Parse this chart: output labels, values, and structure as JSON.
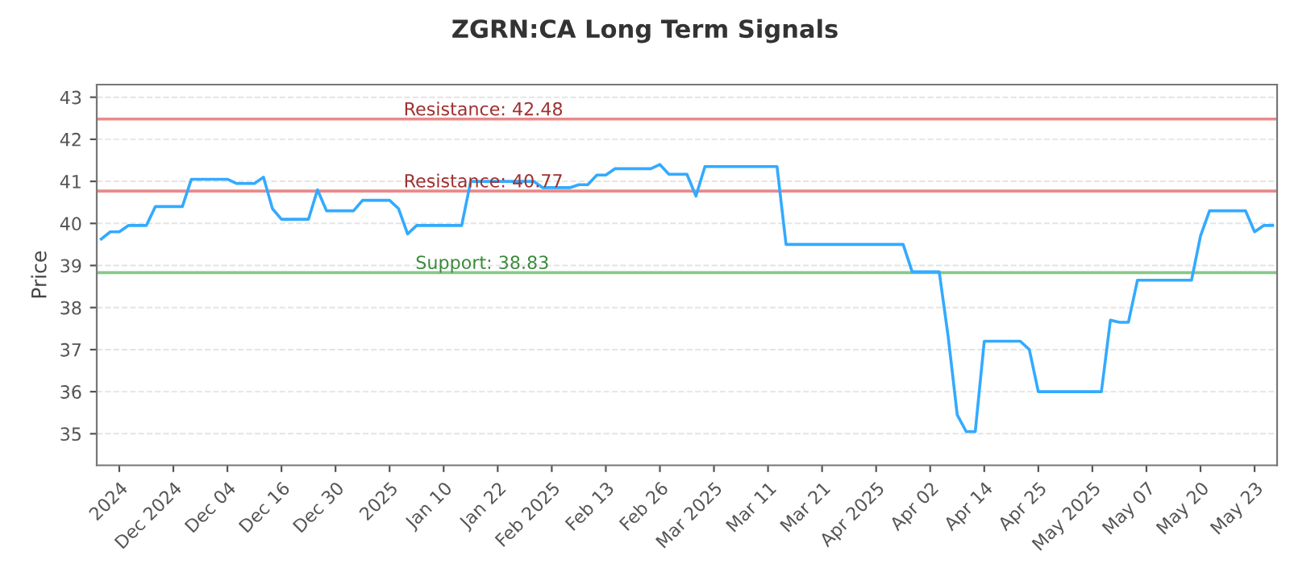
{
  "chart_data": {
    "type": "line",
    "title": "ZGRN:CA Long Term Signals",
    "ylabel": "Price",
    "categories": [
      null,
      null,
      "2024",
      null,
      null,
      null,
      null,
      null,
      "Dec 2024",
      null,
      null,
      null,
      null,
      null,
      "Dec 04",
      null,
      null,
      null,
      null,
      null,
      "Dec 16",
      null,
      null,
      null,
      null,
      null,
      "Dec 30",
      null,
      null,
      null,
      null,
      null,
      "2025",
      null,
      null,
      null,
      null,
      null,
      "Jan 10",
      null,
      null,
      null,
      null,
      null,
      "Jan 22",
      null,
      null,
      null,
      null,
      null,
      "Feb 2025",
      null,
      null,
      null,
      null,
      null,
      "Feb 13",
      null,
      null,
      null,
      null,
      null,
      "Feb 26",
      null,
      null,
      null,
      null,
      null,
      "Mar 2025",
      null,
      null,
      null,
      null,
      null,
      "Mar 11",
      null,
      null,
      null,
      null,
      null,
      "Mar 21",
      null,
      null,
      null,
      null,
      null,
      "Apr 2025",
      null,
      null,
      null,
      null,
      null,
      "Apr 02",
      null,
      null,
      null,
      null,
      null,
      "Apr 14",
      null,
      null,
      null,
      null,
      null,
      "Apr 25",
      null,
      null,
      null,
      null,
      null,
      "May 2025",
      null,
      null,
      null,
      null,
      null,
      "May 07",
      null,
      null,
      null,
      null,
      null,
      "May 20",
      null,
      null,
      null,
      null,
      null,
      "May 23",
      null,
      null
    ],
    "series": [
      {
        "color": "#33aaff",
        "values": [
          39.63,
          39.8,
          39.8,
          39.95,
          39.95,
          39.95,
          40.4,
          40.4,
          40.4,
          40.4,
          41.05,
          41.05,
          41.05,
          41.05,
          41.05,
          40.95,
          40.95,
          40.95,
          41.1,
          40.35,
          40.1,
          40.1,
          40.1,
          40.1,
          40.8,
          40.3,
          40.3,
          40.3,
          40.3,
          40.55,
          40.55,
          40.55,
          40.55,
          40.35,
          39.75,
          39.95,
          39.95,
          39.95,
          39.95,
          39.95,
          39.95,
          41.0,
          41.0,
          41.0,
          41.0,
          41.0,
          41.0,
          41.0,
          41.0,
          40.85,
          40.85,
          40.85,
          40.85,
          40.92,
          40.92,
          41.15,
          41.15,
          41.3,
          41.3,
          41.3,
          41.3,
          41.3,
          41.4,
          41.17,
          41.17,
          41.17,
          40.65,
          41.35,
          41.35,
          41.35,
          41.35,
          41.35,
          41.35,
          41.35,
          41.35,
          41.35,
          39.5,
          39.5,
          39.5,
          39.5,
          39.5,
          39.5,
          39.5,
          39.5,
          39.5,
          39.5,
          39.5,
          39.5,
          39.5,
          39.5,
          38.85,
          38.85,
          38.85,
          38.85,
          37.3,
          35.45,
          35.05,
          35.05,
          37.2,
          37.2,
          37.2,
          37.2,
          37.2,
          37.0,
          36.0,
          36.0,
          36.0,
          36.0,
          36.0,
          36.0,
          36.0,
          36.0,
          37.7,
          37.65,
          37.65,
          38.65,
          38.65,
          38.65,
          38.65,
          38.65,
          38.65,
          38.65,
          39.7,
          40.3,
          40.3,
          40.3,
          40.3,
          40.3,
          39.8,
          39.95,
          39.95
        ]
      }
    ],
    "ylim": [
      34.25,
      43.3
    ],
    "yticks": [
      35,
      36,
      37,
      38,
      39,
      40,
      41,
      42,
      43
    ],
    "grid": "y",
    "marker": "none",
    "line_style": "solid",
    "ref_lines": [
      {
        "axis": "y",
        "value": 42.48,
        "label": "Resistance: 42.48",
        "color": "#e88a8a"
      },
      {
        "axis": "y",
        "value": 40.77,
        "label": "Resistance: 40.77",
        "color": "#e88a8a"
      },
      {
        "axis": "y",
        "value": 38.83,
        "label": "Support: 38.83",
        "color": "#88c888"
      }
    ]
  }
}
